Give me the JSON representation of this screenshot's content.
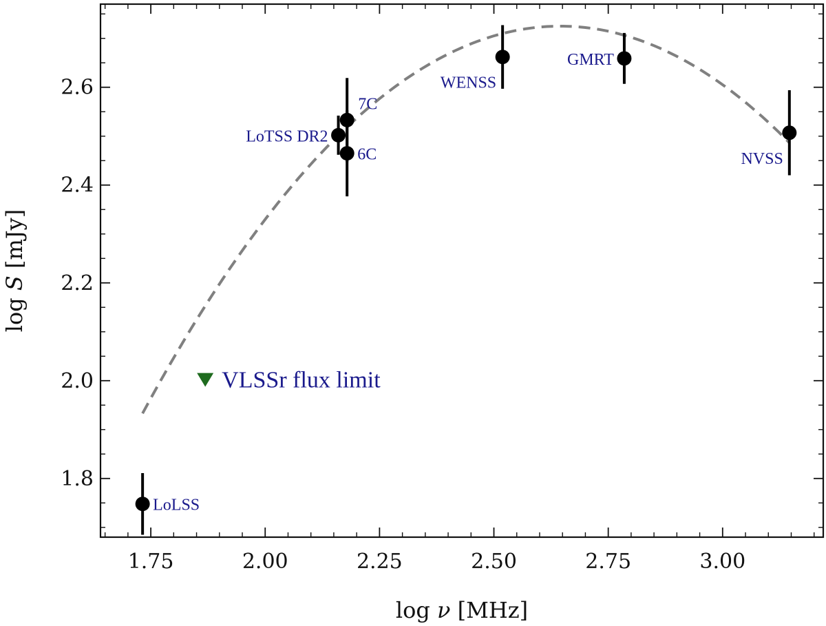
{
  "chart_data": {
    "type": "scatter",
    "title": "",
    "xlabel_prefix": "log ",
    "xlabel_symbol": "ν",
    "xlabel_suffix": " [MHz]",
    "ylabel_prefix": "log ",
    "ylabel_symbol": "S",
    "ylabel_suffix": " [mJy]",
    "xlim": [
      1.64,
      3.22
    ],
    "ylim": [
      1.68,
      2.77
    ],
    "xticks": [
      1.75,
      2.0,
      2.25,
      2.5,
      2.75,
      3.0
    ],
    "xtick_labels": [
      "1.75",
      "2.00",
      "2.25",
      "2.50",
      "2.75",
      "3.00"
    ],
    "yticks": [
      1.8,
      2.0,
      2.2,
      2.4,
      2.6
    ],
    "ytick_labels": [
      "1.8",
      "2.0",
      "2.2",
      "2.4",
      "2.6"
    ],
    "points": [
      {
        "name": "LoLSS",
        "label": "LoLSS",
        "x": 1.732,
        "y": 1.748,
        "err": 0.063,
        "label_pos": "right"
      },
      {
        "name": "LoTSS-DR2",
        "label": "LoTSS DR2",
        "x": 2.16,
        "y": 2.502,
        "err": 0.04,
        "label_pos": "left"
      },
      {
        "name": "7C",
        "label": "7C",
        "x": 2.179,
        "y": 2.533,
        "err": 0.086,
        "label_pos": "right-up"
      },
      {
        "name": "6C",
        "label": "6C",
        "x": 2.179,
        "y": 2.465,
        "err": 0.088,
        "label_pos": "right"
      },
      {
        "name": "WENSS",
        "label": "WENSS",
        "x": 2.519,
        "y": 2.662,
        "err": 0.065,
        "label_pos": "left-down"
      },
      {
        "name": "GMRT",
        "label": "GMRT",
        "x": 2.785,
        "y": 2.659,
        "err": 0.052,
        "label_pos": "left"
      },
      {
        "name": "NVSS",
        "label": "NVSS",
        "x": 3.146,
        "y": 2.507,
        "err": 0.087,
        "label_pos": "left-down"
      }
    ],
    "upper_limit": {
      "name": "VLSSr",
      "x": 1.869,
      "y": 2.003,
      "color": "#1f6b1f"
    },
    "annotation": "VLSSr flux limit",
    "fit": {
      "type": "parabola",
      "style": "dashed",
      "color": "#808080",
      "x_range": [
        1.732,
        3.146
      ],
      "vertex_x": 2.645,
      "vertex_y": 2.725,
      "curvature": -0.95
    }
  }
}
